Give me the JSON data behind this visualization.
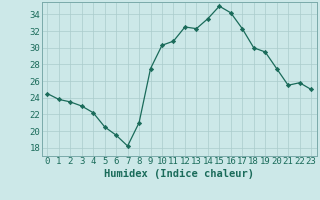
{
  "x": [
    0,
    1,
    2,
    3,
    4,
    5,
    6,
    7,
    8,
    9,
    10,
    11,
    12,
    13,
    14,
    15,
    16,
    17,
    18,
    19,
    20,
    21,
    22,
    23
  ],
  "y": [
    24.5,
    23.8,
    23.5,
    23.0,
    22.2,
    20.5,
    19.5,
    18.2,
    21.0,
    27.5,
    30.3,
    30.8,
    32.5,
    32.3,
    33.5,
    35.0,
    34.2,
    32.3,
    30.0,
    29.5,
    27.5,
    25.5,
    25.8,
    25.0
  ],
  "line_color": "#1a6b5a",
  "marker": "D",
  "marker_size": 2.2,
  "bg_color": "#cce8e8",
  "grid_color": "#aacccc",
  "xlabel": "Humidex (Indice chaleur)",
  "ylim": [
    17,
    35.5
  ],
  "xlim": [
    -0.5,
    23.5
  ],
  "yticks": [
    18,
    20,
    22,
    24,
    26,
    28,
    30,
    32,
    34
  ],
  "xticks": [
    0,
    1,
    2,
    3,
    4,
    5,
    6,
    7,
    8,
    9,
    10,
    11,
    12,
    13,
    14,
    15,
    16,
    17,
    18,
    19,
    20,
    21,
    22,
    23
  ],
  "xlabel_fontsize": 7.5,
  "tick_fontsize": 6.5
}
